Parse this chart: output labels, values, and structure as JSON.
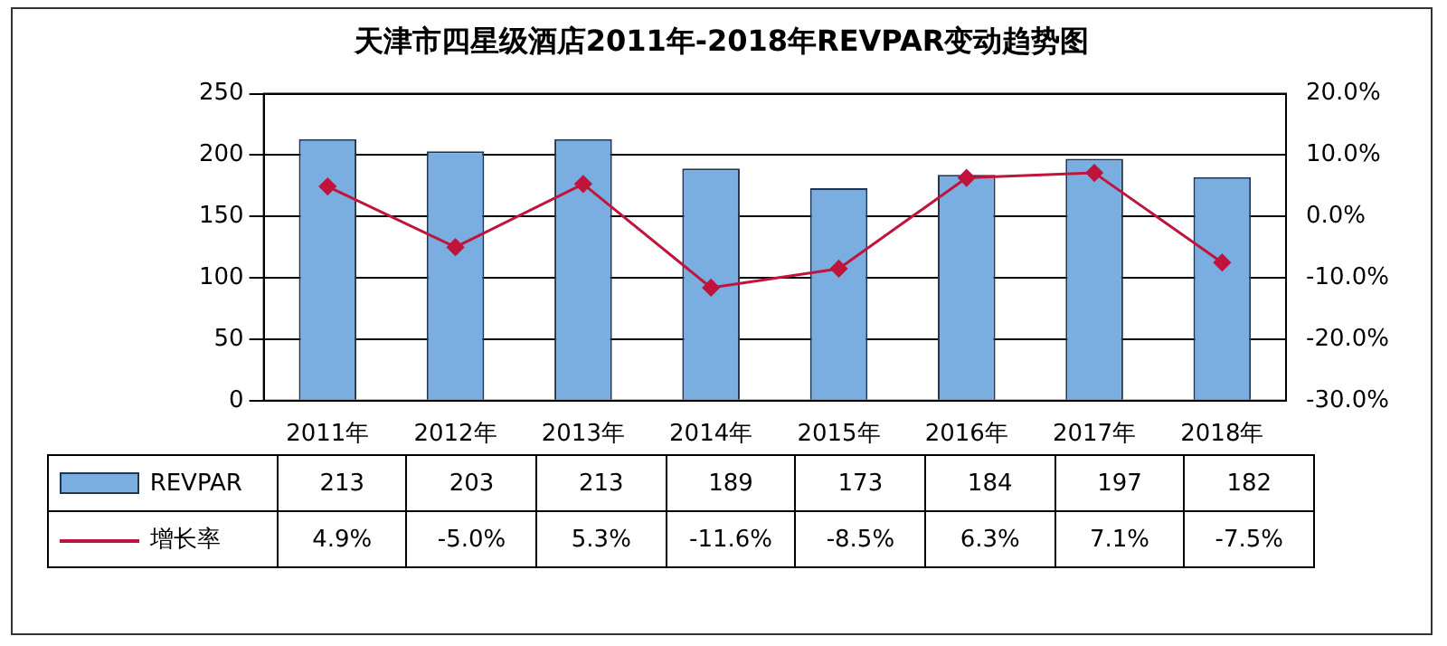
{
  "chart_data": {
    "type": "bar",
    "title": "天津市四星级酒店2011年-2018年REVPAR变动趋势图",
    "categories": [
      "2011年",
      "2012年",
      "2013年",
      "2014年",
      "2015年",
      "2016年",
      "2017年",
      "2018年"
    ],
    "series": [
      {
        "name": "REVPAR",
        "color": "#7aaee0",
        "values": [
          213,
          203,
          213,
          189,
          173,
          184,
          197,
          182
        ],
        "value_labels": [
          "213",
          "203",
          "213",
          "189",
          "173",
          "184",
          "197",
          "182"
        ]
      },
      {
        "name": "增长率",
        "type": "line",
        "axis": "y2",
        "color": "#c0143c",
        "marker": "diamond",
        "values": [
          4.9,
          -5.0,
          5.3,
          -11.6,
          -8.5,
          6.3,
          7.1,
          -7.5
        ],
        "value_labels": [
          "4.9%",
          "-5.0%",
          "5.3%",
          "-11.6%",
          "-8.5%",
          "6.3%",
          "7.1%",
          "-7.5%"
        ]
      }
    ],
    "ylim": [
      0,
      250
    ],
    "yticks": [
      0,
      50,
      100,
      150,
      200,
      250
    ],
    "y2lim": [
      -30,
      20
    ],
    "y2ticks": [
      {
        "value": -30,
        "label": "-30.0%"
      },
      {
        "value": -20,
        "label": "-20.0%"
      },
      {
        "value": -10,
        "label": "-10.0%"
      },
      {
        "value": 0,
        "label": "0.0%"
      },
      {
        "value": 10,
        "label": "10.0%"
      },
      {
        "value": 20,
        "label": "20.0%"
      }
    ],
    "grid": "y",
    "legend": "bottom"
  }
}
